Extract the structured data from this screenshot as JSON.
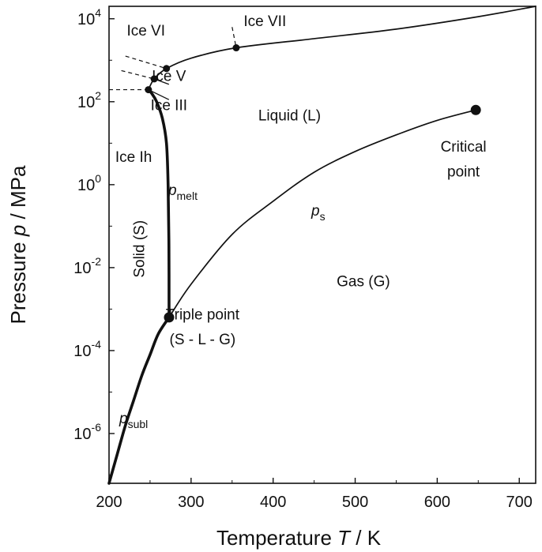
{
  "chart_data": {
    "type": "line",
    "title": "",
    "xlabel": {
      "main": "Temperature ",
      "italic": "T",
      "unit": " / K"
    },
    "ylabel": {
      "main": "Pressure ",
      "italic": "p",
      "unit": " / MPa"
    },
    "x_scale": "linear",
    "y_scale": "log",
    "xlim": [
      200,
      720
    ],
    "ylim_log10": [
      -7.2,
      4.3
    ],
    "x_ticks": [
      200,
      300,
      400,
      500,
      600,
      700
    ],
    "x_tick_labels": [
      "200",
      "300",
      "400",
      "500",
      "600",
      "700"
    ],
    "y_ticks_log10": [
      -6,
      -4,
      -2,
      0,
      2,
      4
    ],
    "y_tick_labels": [
      {
        "base": "10",
        "exp": "-6"
      },
      {
        "base": "10",
        "exp": "-4"
      },
      {
        "base": "10",
        "exp": "-2"
      },
      {
        "base": "10",
        "exp": "0"
      },
      {
        "base": "10",
        "exp": "2"
      },
      {
        "base": "10",
        "exp": "4"
      }
    ],
    "grid": false,
    "legend": "none",
    "series": [
      {
        "name": "psubl",
        "style": "thick",
        "points": [
          [
            200,
            -7.2
          ],
          [
            210,
            -6.5
          ],
          [
            220,
            -5.8
          ],
          [
            230,
            -5.2
          ],
          [
            240,
            -4.6
          ],
          [
            250,
            -4.1
          ],
          [
            260,
            -3.6
          ],
          [
            273.16,
            -3.2
          ]
        ]
      },
      {
        "name": "ps",
        "style": "thin",
        "points": [
          [
            273.16,
            -3.2
          ],
          [
            300,
            -2.4
          ],
          [
            350,
            -1.2
          ],
          [
            400,
            -0.4
          ],
          [
            450,
            0.3
          ],
          [
            500,
            0.8
          ],
          [
            550,
            1.2
          ],
          [
            600,
            1.55
          ],
          [
            647,
            1.8
          ]
        ]
      },
      {
        "name": "pmelt",
        "style": "thick",
        "points": [
          [
            273.16,
            -3.2
          ],
          [
            273,
            -1.5
          ],
          [
            272,
            0
          ],
          [
            270,
            1
          ],
          [
            265,
            1.6
          ],
          [
            258,
            2
          ],
          [
            252,
            2.2
          ],
          [
            248,
            2.29
          ]
        ]
      },
      {
        "name": "ice-boundary",
        "style": "thin",
        "points": [
          [
            248,
            2.29
          ],
          [
            255,
            2.55
          ],
          [
            270,
            2.8
          ],
          [
            300,
            3.05
          ],
          [
            355,
            3.3
          ],
          [
            450,
            3.52
          ],
          [
            550,
            3.75
          ],
          [
            650,
            4.05
          ],
          [
            720,
            4.3
          ]
        ]
      },
      {
        "name": "ice-dashed",
        "style": "dashed",
        "segments": [
          [
            [
              200,
              2.29
            ],
            [
              248,
              2.29
            ]
          ],
          [
            [
              215,
              2.75
            ],
            [
              255,
              2.55
            ]
          ],
          [
            [
              220,
              3.1
            ],
            [
              270,
              2.8
            ]
          ],
          [
            [
              350,
              3.8
            ],
            [
              355,
              3.3
            ]
          ]
        ]
      }
    ],
    "points": [
      {
        "name": "critical-point",
        "x": 647,
        "y_log10": 1.8,
        "size": "large"
      },
      {
        "name": "triple-point",
        "x": 273.16,
        "y_log10": -3.2,
        "size": "large"
      },
      {
        "name": "ice-III-triple",
        "x": 248,
        "y_log10": 2.29,
        "size": "small"
      },
      {
        "name": "ice-V-triple",
        "x": 255,
        "y_log10": 2.55,
        "size": "small"
      },
      {
        "name": "ice-VI-triple",
        "x": 270,
        "y_log10": 2.8,
        "size": "small"
      },
      {
        "name": "ice-VII-triple",
        "x": 355,
        "y_log10": 3.3,
        "size": "small"
      }
    ],
    "annotations": [
      {
        "name": "label-ice-vi",
        "text": "Ice VI",
        "x": 245,
        "y_log10": 3.6
      },
      {
        "name": "label-ice-vii",
        "text": "Ice VII",
        "x": 390,
        "y_log10": 3.82
      },
      {
        "name": "label-ice-v",
        "text": "Ice V",
        "x": 273,
        "y_log10": 2.5
      },
      {
        "name": "label-ice-iii",
        "text": "Ice III",
        "x": 273,
        "y_log10": 1.8
      },
      {
        "name": "label-liquid",
        "text": "Liquid (L)",
        "x": 420,
        "y_log10": 1.55
      },
      {
        "name": "label-ice-ih",
        "text": "Ice Ih",
        "x": 230,
        "y_log10": 0.55
      },
      {
        "name": "label-critical-point-1",
        "text": "Critical",
        "x": 632,
        "y_log10": 0.8
      },
      {
        "name": "label-critical-point-2",
        "text": "point",
        "x": 632,
        "y_log10": 0.2
      },
      {
        "name": "label-gas",
        "text": "Gas (G)",
        "x": 510,
        "y_log10": -2.45
      },
      {
        "name": "label-triple-point-1",
        "text": "Triple point",
        "x": 314,
        "y_log10": -3.25
      },
      {
        "name": "label-triple-point-2",
        "text": "(S - L - G)",
        "x": 314,
        "y_log10": -3.85
      }
    ],
    "rotated_annotations": [
      {
        "name": "label-solid",
        "text": "Solid (S)",
        "x": 243,
        "y_log10": -1.55,
        "rotate": -90
      }
    ],
    "curve_labels": [
      {
        "name": "label-pmelt",
        "main": "p",
        "sub": "melt",
        "x": 290,
        "y_log10": -0.25
      },
      {
        "name": "label-ps",
        "main": "p",
        "sub": "s",
        "x": 455,
        "y_log10": -0.75
      },
      {
        "name": "label-psubl",
        "main": "p",
        "sub": "subl",
        "x": 230,
        "y_log10": -5.75
      }
    ],
    "leader_lines": [
      {
        "name": "leader-ice-v",
        "from": [
          255,
          2.55
        ],
        "to": [
          273,
          2.42
        ]
      },
      {
        "name": "leader-ice-iii",
        "from": [
          248,
          2.29
        ],
        "to": [
          273,
          2.05
        ]
      }
    ]
  }
}
